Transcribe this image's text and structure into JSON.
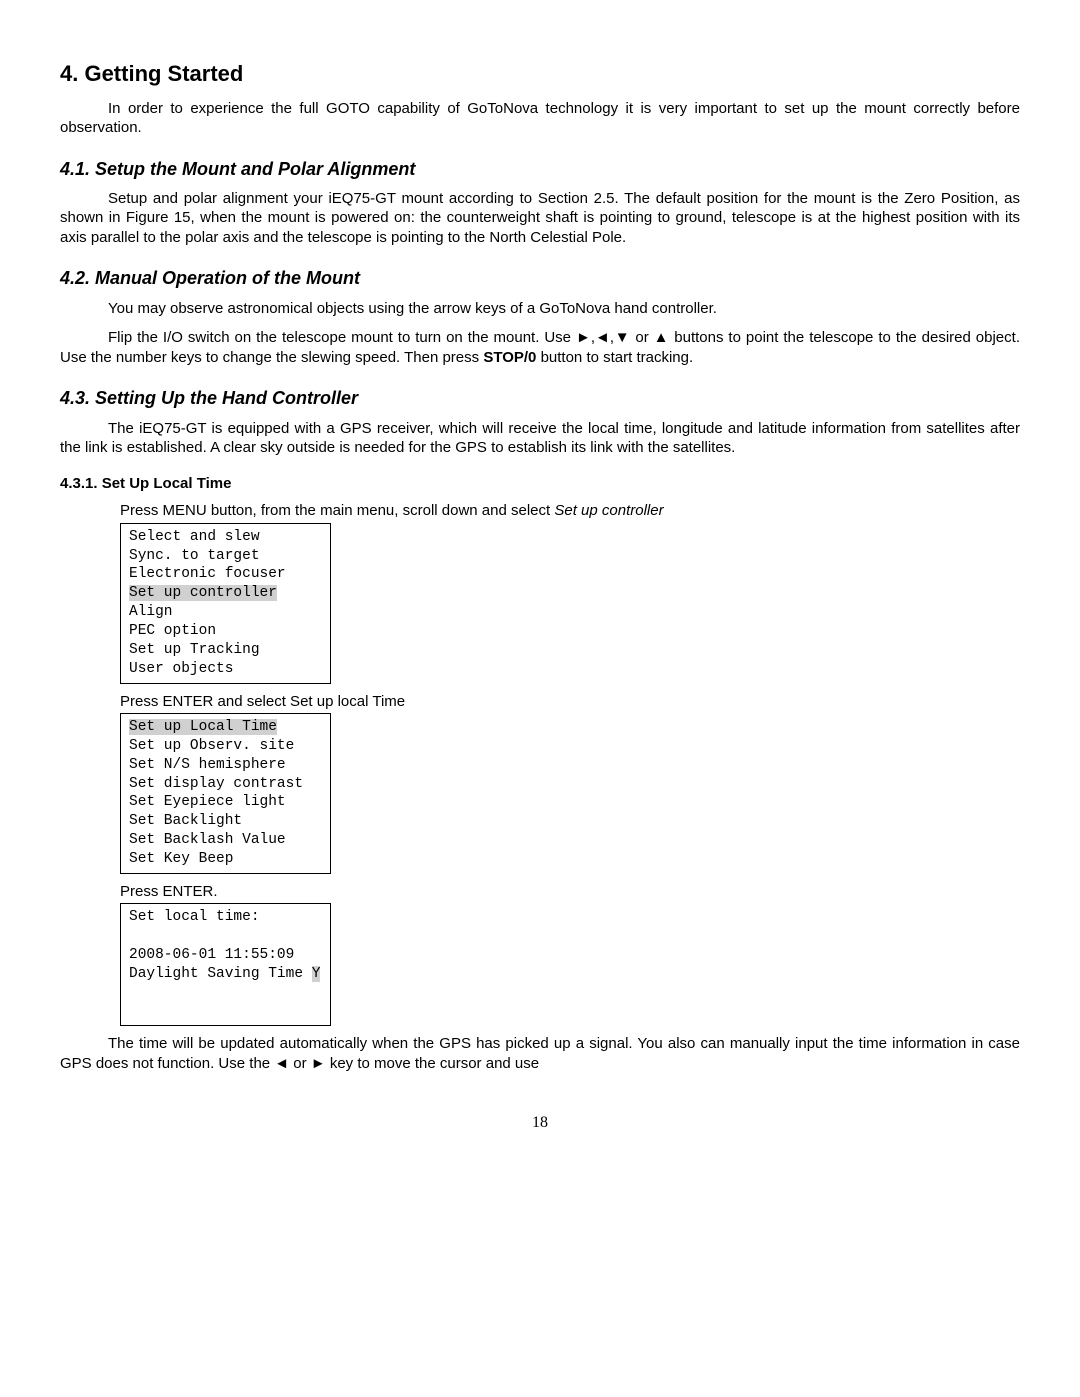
{
  "h1": "4. Getting Started",
  "p1": "In order to experience the full GOTO capability of GoToNova technology it is very important to set up the mount correctly before observation.",
  "h2a": "4.1. Setup the Mount and Polar Alignment",
  "p2": "Setup and polar alignment your iEQ75-GT mount according to Section 2.5. The default position for the mount is the Zero Position, as shown in Figure 15, when the mount is powered on: the counterweight shaft is pointing to ground, telescope is at the highest position with its axis parallel to the polar axis and the telescope is pointing to the North Celestial Pole.",
  "h2b": "4.2. Manual Operation of the Mount",
  "p3": "You may observe astronomical objects using the arrow keys of a GoToNova hand controller.",
  "p4a": "Flip the I/O switch on the telescope mount to turn on the mount. Use ►,◄,▼ or ▲ buttons to point the telescope to the desired object. Use the number keys to change the slewing speed. Then press ",
  "p4b": "STOP/0",
  "p4c": " button to start tracking.",
  "h2c": "4.3. Setting Up the Hand Controller",
  "p5": "The iEQ75-GT is equipped with a GPS receiver, which will receive the local time, longitude and latitude information from satellites after the link is established. A clear sky outside is needed for the GPS to establish its link with the satellites.",
  "h3a": "4.3.1. Set Up Local Time",
  "instr1a": "Press MENU button, from the main menu, scroll down and select ",
  "instr1b": "Set up controller",
  "screen1": {
    "lines": [
      "Select and slew",
      "Sync. to target",
      "Electronic focuser",
      "Set up controller",
      "Align",
      "PEC option",
      "Set up Tracking",
      "User objects"
    ],
    "highlight_index": 3
  },
  "instr2": "Press ENTER and select  Set up local Time",
  "screen2": {
    "lines": [
      "Set up Local Time",
      "Set up Observ. site",
      "Set N/S hemisphere",
      "Set display contrast",
      "Set Eyepiece light",
      "Set Backlight",
      "Set Backlash Value",
      "Set Key Beep"
    ],
    "highlight_index": 0
  },
  "instr3": "Press ENTER.",
  "screen3": {
    "title": "Set local time:",
    "date": "2008-06-01 11:55:09",
    "dst_label": "Daylight Saving Time ",
    "dst_value": "Y"
  },
  "p6": "The time will be updated automatically when the GPS has picked up a signal. You also can manually input the time information in case GPS does not function. Use the ◄ or ► key to move the cursor and use",
  "page_number": "18"
}
